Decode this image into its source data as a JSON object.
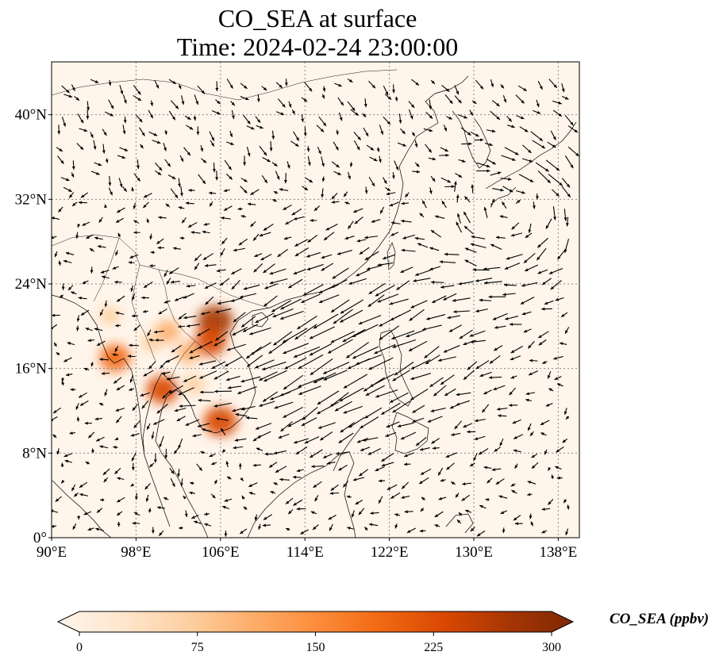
{
  "map": {
    "title_line1": "CO_SEA at surface",
    "title_line2": "Time: 2024-02-24 23:00:00",
    "lon_range": [
      90,
      140
    ],
    "lat_range": [
      0,
      45
    ],
    "lon_ticks": [
      90,
      98,
      106,
      114,
      122,
      130,
      138
    ],
    "lon_tick_labels": [
      "90°E",
      "98°E",
      "106°E",
      "114°E",
      "122°E",
      "130°E",
      "138°E"
    ],
    "lat_ticks": [
      0,
      8,
      16,
      24,
      32,
      40
    ],
    "lat_tick_labels": [
      "0°",
      "8°N",
      "16°N",
      "24°N",
      "32°N",
      "40°N"
    ],
    "gridlines": true,
    "background_color": "#fff5eb",
    "hotspots": [
      {
        "lon": 105.5,
        "lat": 20.5,
        "value": 260
      },
      {
        "lon": 105.0,
        "lat": 18.5,
        "value": 220
      },
      {
        "lon": 106.0,
        "lat": 11.0,
        "value": 240
      },
      {
        "lon": 100.5,
        "lat": 14.0,
        "value": 210
      },
      {
        "lon": 96.0,
        "lat": 17.0,
        "value": 200
      },
      {
        "lon": 101.0,
        "lat": 19.5,
        "value": 120
      },
      {
        "lon": 103.0,
        "lat": 17.5,
        "value": 110
      },
      {
        "lon": 99.5,
        "lat": 18.5,
        "value": 90
      },
      {
        "lon": 103.5,
        "lat": 14.5,
        "value": 80
      },
      {
        "lon": 95.5,
        "lat": 21.0,
        "value": 70
      }
    ]
  },
  "colorbar": {
    "label": "CO_SEA (ppbv)",
    "min": 0,
    "max": 300,
    "ticks": [
      "0",
      "75",
      "150",
      "225",
      "300"
    ],
    "colors": [
      "#fff5eb",
      "#fee6ce",
      "#fdd0a2",
      "#fdae6b",
      "#fd8d3c",
      "#f16913",
      "#d94801",
      "#a63603",
      "#7f2704"
    ],
    "extend": "both"
  },
  "colors": {
    "coastline": "#000000",
    "wind_arrows": "#000000",
    "grid": "#888888"
  }
}
